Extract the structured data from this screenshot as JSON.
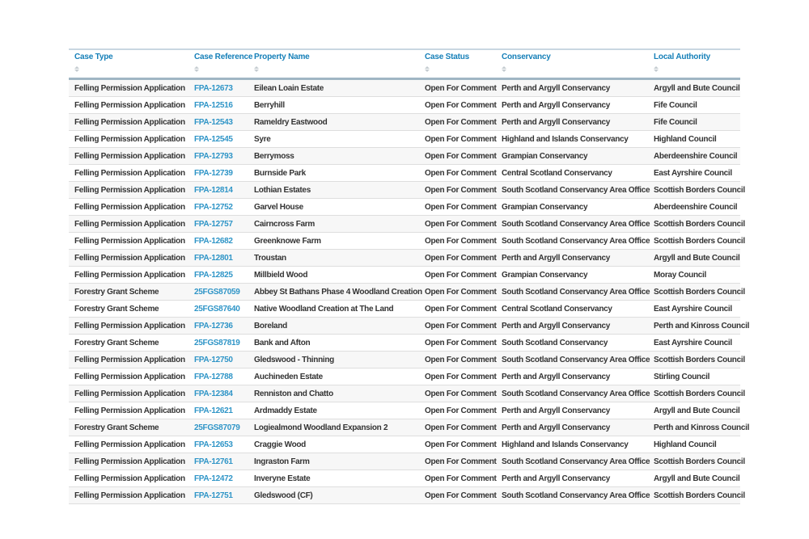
{
  "colors": {
    "header_text": "#157fb8",
    "link": "#2f95c7",
    "body_text": "#333333",
    "stripe": "#f7f7f7",
    "row_border": "#dedede",
    "header_border_top": "#c9d7e1",
    "header_border_bottom": "#a0b6c4",
    "sort_icon": "#c4cbd0"
  },
  "table": {
    "columns": [
      {
        "label": "Case Type"
      },
      {
        "label": "Case Reference"
      },
      {
        "label": "Property Name"
      },
      {
        "label": "Case Status"
      },
      {
        "label": "Conservancy"
      },
      {
        "label": "Local Authority"
      }
    ],
    "rows": [
      [
        "Felling Permission Application",
        "FPA-12673",
        "Eilean Loain Estate",
        "Open For Comment",
        "Perth and Argyll Conservancy",
        "Argyll and Bute Council"
      ],
      [
        "Felling Permission Application",
        "FPA-12516",
        "Berryhill",
        "Open For Comment",
        "Perth and Argyll Conservancy",
        "Fife Council"
      ],
      [
        "Felling Permission Application",
        "FPA-12543",
        "Rameldry Eastwood",
        "Open For Comment",
        "Perth and Argyll Conservancy",
        "Fife Council"
      ],
      [
        "Felling Permission Application",
        "FPA-12545",
        "Syre",
        "Open For Comment",
        "Highland and Islands Conservancy",
        "Highland Council"
      ],
      [
        "Felling Permission Application",
        "FPA-12793",
        "Berrymoss",
        "Open For Comment",
        "Grampian Conservancy",
        "Aberdeenshire Council"
      ],
      [
        "Felling Permission Application",
        "FPA-12739",
        "Burnside Park",
        "Open For Comment",
        "Central Scotland Conservancy",
        "East Ayrshire Council"
      ],
      [
        "Felling Permission Application",
        "FPA-12814",
        "Lothian Estates",
        "Open For Comment",
        "South Scotland Conservancy Area Office",
        "Scottish Borders Council"
      ],
      [
        "Felling Permission Application",
        "FPA-12752",
        "Garvel House",
        "Open For Comment",
        "Grampian Conservancy",
        "Aberdeenshire Council"
      ],
      [
        "Felling Permission Application",
        "FPA-12757",
        "Cairncross Farm",
        "Open For Comment",
        "South Scotland Conservancy Area Office",
        "Scottish Borders Council"
      ],
      [
        "Felling Permission Application",
        "FPA-12682",
        "Greenknowe Farm",
        "Open For Comment",
        "South Scotland Conservancy Area Office",
        "Scottish Borders Council"
      ],
      [
        "Felling Permission Application",
        "FPA-12801",
        "Troustan",
        "Open For Comment",
        "Perth and Argyll Conservancy",
        "Argyll and Bute Council"
      ],
      [
        "Felling Permission Application",
        "FPA-12825",
        "Millbield Wood",
        "Open For Comment",
        "Grampian Conservancy",
        "Moray Council"
      ],
      [
        "Forestry Grant Scheme",
        "25FGS87059",
        "Abbey St Bathans Phase 4 Woodland Creation",
        "Open For Comment",
        "South Scotland Conservancy Area Office",
        "Scottish Borders Council"
      ],
      [
        "Forestry Grant Scheme",
        "25FGS87640",
        "Native Woodland Creation at The Land",
        "Open For Comment",
        "Central Scotland Conservancy",
        "East Ayrshire Council"
      ],
      [
        "Felling Permission Application",
        "FPA-12736",
        "Boreland",
        "Open For Comment",
        "Perth and Argyll Conservancy",
        "Perth and Kinross Council"
      ],
      [
        "Forestry Grant Scheme",
        "25FGS87819",
        "Bank and Afton",
        "Open For Comment",
        "South Scotland Conservancy",
        "East Ayrshire Council"
      ],
      [
        "Felling Permission Application",
        "FPA-12750",
        "Gledswood - Thinning",
        "Open For Comment",
        "South Scotland Conservancy Area Office",
        "Scottish Borders Council"
      ],
      [
        "Felling Permission Application",
        "FPA-12788",
        "Auchineden Estate",
        "Open For Comment",
        "Perth and Argyll Conservancy",
        "Stirling Council"
      ],
      [
        "Felling Permission Application",
        "FPA-12384",
        "Renniston and Chatto",
        "Open For Comment",
        "South Scotland Conservancy Area Office",
        "Scottish Borders Council"
      ],
      [
        "Felling Permission Application",
        "FPA-12621",
        "Ardmaddy Estate",
        "Open For Comment",
        "Perth and Argyll Conservancy",
        "Argyll and Bute Council"
      ],
      [
        "Forestry Grant Scheme",
        "25FGS87079",
        "Logiealmond Woodland Expansion 2",
        "Open For Comment",
        "Perth and Argyll Conservancy",
        "Perth and Kinross Council"
      ],
      [
        "Felling Permission Application",
        "FPA-12653",
        "Craggie Wood",
        "Open For Comment",
        "Highland and Islands Conservancy",
        "Highland Council"
      ],
      [
        "Felling Permission Application",
        "FPA-12761",
        "Ingraston Farm",
        "Open For Comment",
        "South Scotland Conservancy Area Office",
        "Scottish Borders Council"
      ],
      [
        "Felling Permission Application",
        "FPA-12472",
        "Inveryne Estate",
        "Open For Comment",
        "Perth and Argyll Conservancy",
        "Argyll and Bute Council"
      ],
      [
        "Felling Permission Application",
        "FPA-12751",
        "Gledswood (CF)",
        "Open For Comment",
        "South Scotland Conservancy Area Office",
        "Scottish Borders Council"
      ]
    ]
  }
}
